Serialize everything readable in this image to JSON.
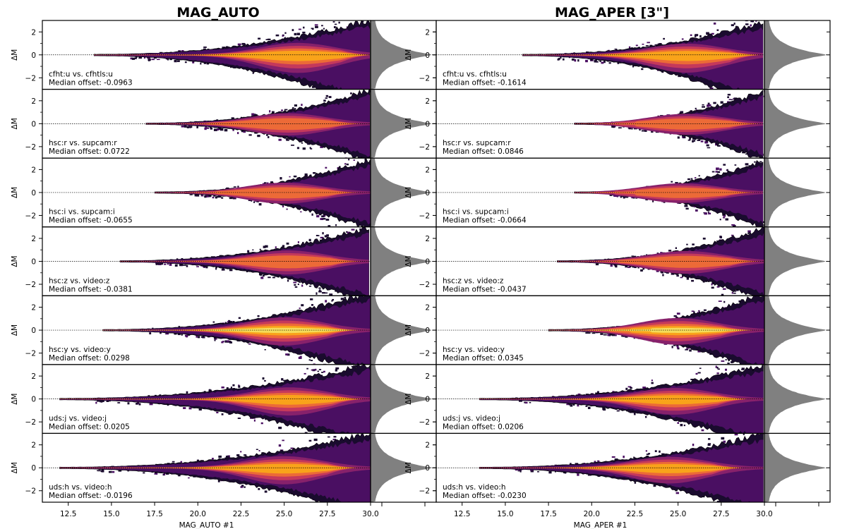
{
  "chart_data": {
    "type": "heatmap",
    "columns": [
      {
        "title": "MAG_AUTO",
        "xlabel": "MAG_AUTO #1",
        "rows": [
          {
            "label": "cfht:u vs. cfhtls:u",
            "median_label": "Median offset: -0.0963",
            "x_start": 14.0,
            "x_peak": 25.8,
            "spread": 1.0,
            "asym": 0.35,
            "peak_level": 4
          },
          {
            "label": "hsc:r vs. supcam:r",
            "median_label": "Median offset: 0.0722",
            "x_start": 17.0,
            "x_peak": 25.2,
            "spread": 0.8,
            "asym": 0.1,
            "peak_level": 3
          },
          {
            "label": "hsc:i vs. supcam:i",
            "median_label": "Median offset: -0.0655",
            "x_start": 17.5,
            "x_peak": 25.0,
            "spread": 0.75,
            "asym": 0.1,
            "peak_level": 3
          },
          {
            "label": "hsc:z vs. video:z",
            "median_label": "Median offset: -0.0381",
            "x_start": 15.5,
            "x_peak": 25.2,
            "spread": 0.85,
            "asym": 0.15,
            "peak_level": 3
          },
          {
            "label": "hsc:y vs. video:y",
            "median_label": "Median offset: 0.0298",
            "x_start": 14.5,
            "x_peak": 25.0,
            "spread": 1.0,
            "asym": 0.15,
            "peak_level": 5
          },
          {
            "label": "uds:j vs. video:j",
            "median_label": "Median offset: 0.0205",
            "x_start": 12.0,
            "x_peak": 25.3,
            "spread": 0.95,
            "asym": 0.3,
            "peak_level": 4
          },
          {
            "label": "uds:h vs. video:h",
            "median_label": "Median offset: -0.0196",
            "x_start": 12.0,
            "x_peak": 25.0,
            "spread": 0.95,
            "asym": 0.3,
            "peak_level": 4
          }
        ]
      },
      {
        "title": "MAG_APER [3\"]",
        "xlabel": "MAG_APER #1",
        "rows": [
          {
            "label": "cfht:u vs. cfhtls:u",
            "median_label": "Median offset: -0.1614",
            "x_start": 16.0,
            "x_peak": 25.5,
            "spread": 0.95,
            "asym": 0.4,
            "peak_level": 4
          },
          {
            "label": "hsc:r vs. supcam:r",
            "median_label": "Median offset: 0.0846",
            "x_start": 19.0,
            "x_peak": 25.5,
            "spread": 0.75,
            "asym": 0.1,
            "peak_level": 3
          },
          {
            "label": "hsc:i vs. supcam:i",
            "median_label": "Median offset: -0.0664",
            "x_start": 19.0,
            "x_peak": 25.2,
            "spread": 0.7,
            "asym": 0.1,
            "peak_level": 3
          },
          {
            "label": "hsc:z vs. video:z",
            "median_label": "Median offset: -0.0437",
            "x_start": 18.0,
            "x_peak": 25.5,
            "spread": 0.8,
            "asym": 0.15,
            "peak_level": 3
          },
          {
            "label": "hsc:y vs. video:y",
            "median_label": "Median offset: 0.0345",
            "x_start": 17.5,
            "x_peak": 25.0,
            "spread": 0.95,
            "asym": 0.15,
            "peak_level": 5
          },
          {
            "label": "uds:j vs. video:j",
            "median_label": "Median offset: 0.0206",
            "x_start": 13.5,
            "x_peak": 24.8,
            "spread": 0.9,
            "asym": 0.3,
            "peak_level": 4
          },
          {
            "label": "uds:h vs. video:h",
            "median_label": "Median offset: -0.0230",
            "x_start": 13.5,
            "x_peak": 24.5,
            "spread": 0.9,
            "asym": 0.3,
            "peak_level": 4
          }
        ]
      }
    ],
    "ylabel": "ΔM",
    "xlim": [
      11.0,
      30.0
    ],
    "ylim": [
      -3.0,
      3.0
    ],
    "xticks": [
      12.5,
      15.0,
      17.5,
      20.0,
      22.5,
      25.0,
      27.5,
      30.0
    ],
    "xtick_labels": [
      "12.5",
      "15.0",
      "17.5",
      "20.0",
      "22.5",
      "25.0",
      "27.5",
      "30.0"
    ],
    "yticks": [
      -2,
      0,
      2
    ],
    "ytick_labels": [
      "−2",
      "0",
      "2"
    ],
    "zero_line": true,
    "grid": false,
    "colormap": "inferno",
    "contour_colors": [
      "#1a0b2e",
      "#4a0f62",
      "#87216b",
      "#c5395b",
      "#ec6a37",
      "#f9a31a",
      "#f5dc5a"
    ],
    "histogram_color": "#808080"
  }
}
